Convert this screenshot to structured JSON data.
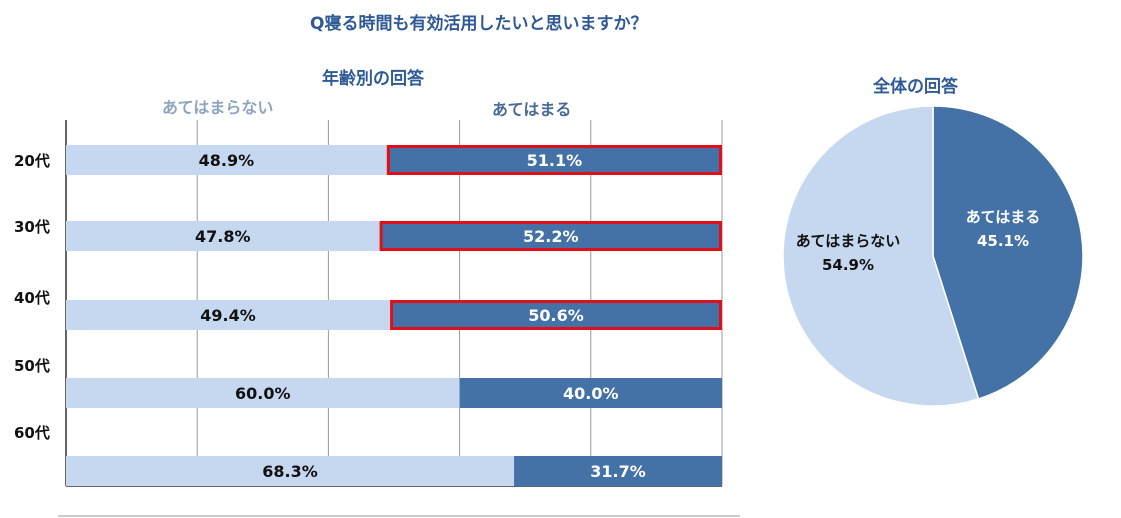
{
  "title": "Q寝る時間も有効活用したいと思いますか？",
  "colors": {
    "dark": "#4472a6",
    "light": "#c6d8f0",
    "highlight": "#e0101a",
    "title": "#2f5a96"
  },
  "chart_data": [
    {
      "type": "bar",
      "orientation": "horizontal-stacked-100",
      "title": "年齢別の回答",
      "categories": [
        "20代",
        "30代",
        "40代",
        "50代",
        "60代"
      ],
      "series": [
        {
          "name": "あてはまらない",
          "values": [
            48.9,
            47.8,
            49.4,
            60.0,
            68.3
          ],
          "labels": [
            "48.9%",
            "47.8%",
            "49.4%",
            "60.0%",
            "68.3%"
          ],
          "color": "#c6d8f0"
        },
        {
          "name": "あてはまる",
          "values": [
            51.1,
            52.2,
            50.6,
            40.0,
            31.7
          ],
          "labels": [
            "51.1%",
            "52.2%",
            "50.6%",
            "40.0%",
            "31.7%"
          ],
          "color": "#4472a6"
        }
      ],
      "highlighted": [
        "20代",
        "30代",
        "40代"
      ],
      "xlim": [
        0,
        100
      ],
      "grid": true
    },
    {
      "type": "pie",
      "title": "全体の回答",
      "slices": [
        {
          "name": "あてはまる",
          "value": 45.1,
          "label": "45.1%",
          "color": "#4472a6"
        },
        {
          "name": "あてはまらない",
          "value": 54.9,
          "label": "54.9%",
          "color": "#c6d8f0"
        }
      ]
    }
  ]
}
